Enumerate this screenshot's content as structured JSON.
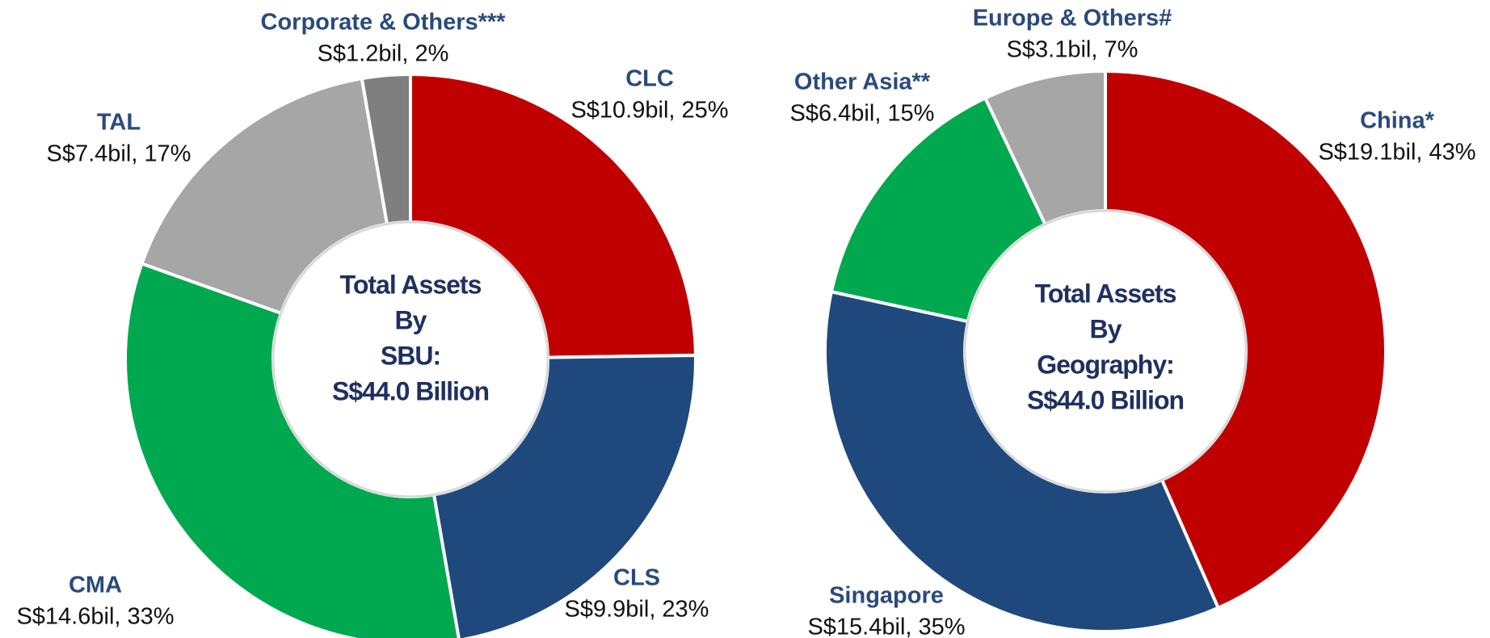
{
  "chart_data": [
    {
      "type": "donut",
      "center_text": [
        "Total Assets",
        "By",
        "SBU:",
        "S$44.0 Billion"
      ],
      "categories": [
        "CLC",
        "CLS",
        "CMA",
        "TAL",
        "Corporate & Others***"
      ],
      "values": [
        10.9,
        9.9,
        14.6,
        7.4,
        1.2
      ],
      "value_labels": [
        "S$10.9bil, 25%",
        "S$9.9bil, 23%",
        "S$14.6bil, 33%",
        "S$7.4bil, 17%",
        "S$1.2bil, 2%"
      ],
      "colors": [
        "#c00000",
        "#1f497d",
        "#00a84f",
        "#a6a6a6",
        "#7f7f7f"
      ]
    },
    {
      "type": "donut",
      "center_text": [
        "Total Assets",
        "By",
        "Geography:",
        "S$44.0 Billion"
      ],
      "categories": [
        "China*",
        "Singapore",
        "Other Asia**",
        "Europe & Others#"
      ],
      "values": [
        19.1,
        15.4,
        6.4,
        3.1
      ],
      "value_labels": [
        "S$19.1bil, 43%",
        "S$15.4bil, 35%",
        "S$6.4bil, 15%",
        "S$3.1bil, 7%"
      ],
      "colors": [
        "#c00000",
        "#1f497d",
        "#00a84f",
        "#a6a6a6"
      ]
    }
  ]
}
